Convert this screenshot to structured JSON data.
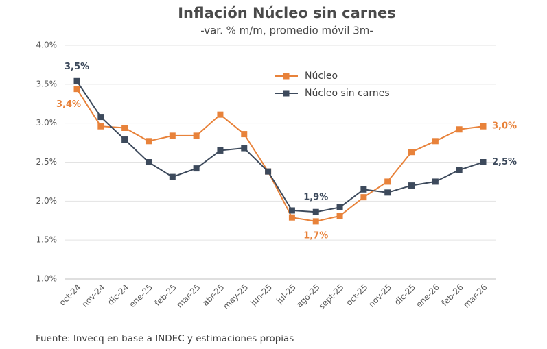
{
  "chart_data": {
    "type": "line",
    "title": "Inflación Núcleo sin carnes",
    "subtitle": "-var. % m/m, promedio móvil 3m-",
    "source": "Fuente: Invecq en base a INDEC y estimaciones propias",
    "categories": [
      "oct-24",
      "nov-24",
      "dic-24",
      "ene-25",
      "feb-25",
      "mar-25",
      "abr-25",
      "may-25",
      "jun-25",
      "jul-25",
      "ago-25",
      "sept-25",
      "oct-25",
      "nov-25",
      "dic-25",
      "ene-26",
      "feb-26",
      "mar-26"
    ],
    "series": [
      {
        "name": "Núcleo",
        "color": "#e8823a",
        "values": [
          3.44,
          2.96,
          2.94,
          2.77,
          2.84,
          2.84,
          3.11,
          2.86,
          2.38,
          1.79,
          1.74,
          1.81,
          2.05,
          2.25,
          2.63,
          2.77,
          2.92,
          2.96
        ],
        "value_labels": [
          "3,4%",
          null,
          null,
          null,
          null,
          null,
          null,
          null,
          null,
          null,
          "1,7%",
          null,
          null,
          null,
          null,
          null,
          null,
          "3,0%"
        ]
      },
      {
        "name": "Núcleo sin carnes",
        "color": "#3d4a5c",
        "values": [
          3.54,
          3.08,
          2.79,
          2.5,
          2.31,
          2.42,
          2.65,
          2.68,
          2.38,
          1.88,
          1.86,
          1.92,
          2.15,
          2.11,
          2.2,
          2.25,
          2.4,
          2.5
        ],
        "value_labels": [
          "3,5%",
          null,
          null,
          null,
          null,
          null,
          null,
          null,
          null,
          null,
          "1,9%",
          null,
          null,
          null,
          null,
          null,
          null,
          "2,5%"
        ]
      }
    ],
    "ylim": [
      1.0,
      4.0
    ],
    "yticks": [
      {
        "value": 1.0,
        "label": "1.0%"
      },
      {
        "value": 1.5,
        "label": "1.5%"
      },
      {
        "value": 2.0,
        "label": "2.0%"
      },
      {
        "value": 2.5,
        "label": "2.5%"
      },
      {
        "value": 3.0,
        "label": "3.0%"
      },
      {
        "value": 3.5,
        "label": "3.5%"
      },
      {
        "value": 4.0,
        "label": "4.0%"
      }
    ],
    "grid": true,
    "legend": "top"
  }
}
